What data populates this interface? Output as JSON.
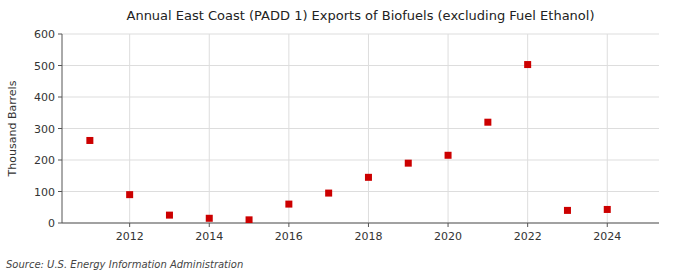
{
  "chart_data": {
    "type": "scatter",
    "title": "Annual East Coast (PADD 1) Exports of Biofuels (excluding Fuel Ethanol)",
    "y_label": "Thousand Barrels",
    "annotations": [
      "Source: U.S. Energy Information Administration"
    ],
    "x": [
      2011,
      2012,
      2013,
      2014,
      2015,
      2016,
      2017,
      2018,
      2019,
      2020,
      2021,
      2022,
      2023,
      2024
    ],
    "values": [
      262,
      90,
      25,
      15,
      10,
      60,
      95,
      145,
      190,
      215,
      320,
      503,
      40,
      43
    ],
    "color": "#cc0000",
    "marker": "square",
    "grid": true,
    "xlim": [
      2010.3,
      2025.3
    ],
    "xticks": [
      2012,
      2014,
      2016,
      2018,
      2020,
      2022,
      2024
    ],
    "ylim": [
      0,
      600
    ],
    "yticks": [
      0,
      100,
      200,
      300,
      400,
      500,
      600
    ]
  }
}
